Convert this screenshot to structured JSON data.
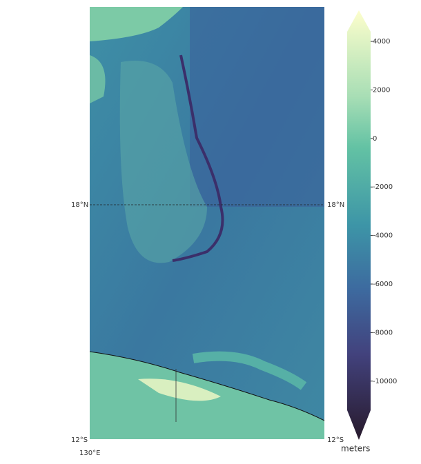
{
  "map": {
    "gridline_labels": {
      "left_lat": "18°N",
      "right_lat": "18°N",
      "bottom_left_lat": "12°S",
      "bottom_right_lat": "12°S",
      "lon": "130°E"
    },
    "colorbar": {
      "label": "meters",
      "lim": [
        -11200,
        4400
      ],
      "ticks": [
        4000,
        2000,
        0,
        -2000,
        -4000,
        -6000,
        -8000,
        -10000
      ]
    }
  }
}
